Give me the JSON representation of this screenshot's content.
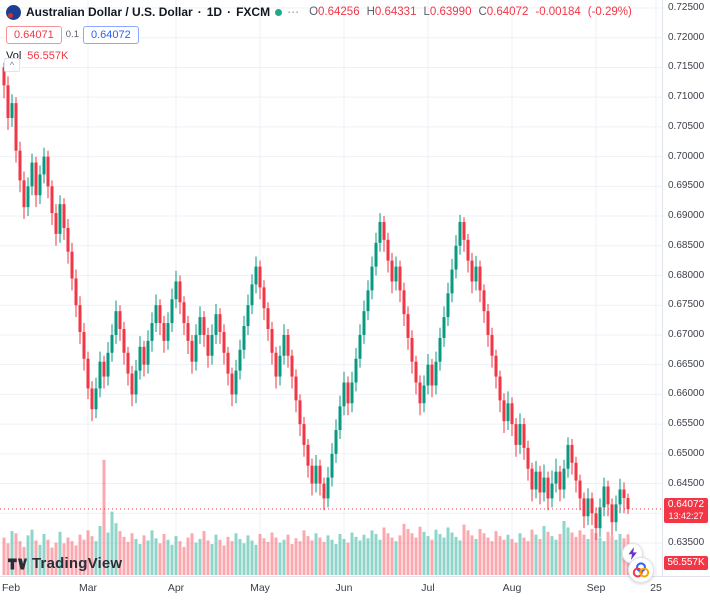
{
  "header": {
    "symbol_title": "Australian Dollar / U.S. Dollar",
    "separator": "·",
    "interval": "1D",
    "exchange": "FXCM",
    "ohlc": {
      "o_label": "O",
      "o": "0.64256",
      "h_label": "H",
      "h": "0.64331",
      "l_label": "L",
      "l": "0.63990",
      "c_label": "C",
      "c": "0.64072",
      "change": "-0.00184",
      "change_pct": "(-0.29%)"
    },
    "sell_price": "0.64071",
    "spread": "0.1",
    "buy_price": "0.64072",
    "vol_label": "Vol",
    "vol_value": "56.557K",
    "more_icon_glyph": "⋯",
    "collapse_glyph": "^"
  },
  "price_axis": {
    "labels": [
      "0.72500",
      "0.72000",
      "0.71500",
      "0.71000",
      "0.70500",
      "0.70000",
      "0.69500",
      "0.69000",
      "0.68500",
      "0.68000",
      "0.67500",
      "0.67000",
      "0.66500",
      "0.66000",
      "0.65500",
      "0.65000",
      "0.64500",
      "0.64000",
      "0.63500"
    ],
    "current_price": "0.64072",
    "countdown": "13:42:27"
  },
  "volume_badge": "56.557K",
  "watermark_text": "TradingView",
  "colors": {
    "up": "#089981",
    "down": "#f23645",
    "volume_up": "#22ab94",
    "volume_down": "#f7525f",
    "buy_blue": "#2962ff",
    "grid": "#eef1f7",
    "badge_red": "#f23645"
  },
  "chart_data": {
    "type": "candlestick",
    "title": "Australian Dollar / U.S. Dollar",
    "interval": "1D",
    "exchange": "FXCM",
    "price_range": [
      0.635,
      0.725
    ],
    "grid_step": 0.005,
    "last_price": 0.64072,
    "volume_unit": "K",
    "x_ticks": [
      [
        "Feb",
        0
      ],
      [
        "Mar",
        21
      ],
      [
        "Apr",
        43
      ],
      [
        "May",
        64
      ],
      [
        "Jun",
        85
      ],
      [
        "Jul",
        106
      ],
      [
        "Aug",
        127
      ],
      [
        "Sep",
        148
      ],
      [
        "25",
        163
      ]
    ],
    "candles": [
      [
        0.715,
        0.7158,
        0.7098,
        0.712
      ],
      [
        0.712,
        0.7135,
        0.7045,
        0.7065
      ],
      [
        0.7065,
        0.7105,
        0.705,
        0.709
      ],
      [
        0.709,
        0.71,
        0.699,
        0.701
      ],
      [
        0.701,
        0.7025,
        0.694,
        0.696
      ],
      [
        0.696,
        0.6975,
        0.6895,
        0.6915
      ],
      [
        0.6915,
        0.6965,
        0.69,
        0.695
      ],
      [
        0.695,
        0.7005,
        0.6935,
        0.699
      ],
      [
        0.699,
        0.7,
        0.6915,
        0.6935
      ],
      [
        0.6935,
        0.6985,
        0.692,
        0.697
      ],
      [
        0.697,
        0.7015,
        0.6955,
        0.7
      ],
      [
        0.7,
        0.701,
        0.693,
        0.695
      ],
      [
        0.695,
        0.696,
        0.6885,
        0.6905
      ],
      [
        0.6905,
        0.692,
        0.685,
        0.687
      ],
      [
        0.687,
        0.6935,
        0.6855,
        0.692
      ],
      [
        0.692,
        0.693,
        0.686,
        0.688
      ],
      [
        0.688,
        0.6895,
        0.682,
        0.684
      ],
      [
        0.684,
        0.6855,
        0.6775,
        0.6795
      ],
      [
        0.6795,
        0.681,
        0.673,
        0.675
      ],
      [
        0.675,
        0.6765,
        0.6685,
        0.6705
      ],
      [
        0.6705,
        0.672,
        0.664,
        0.666
      ],
      [
        0.666,
        0.6672,
        0.6592,
        0.661
      ],
      [
        0.661,
        0.6622,
        0.6555,
        0.6575
      ],
      [
        0.6575,
        0.6628,
        0.656,
        0.661
      ],
      [
        0.661,
        0.6672,
        0.6595,
        0.6655
      ],
      [
        0.6655,
        0.6665,
        0.661,
        0.663
      ],
      [
        0.663,
        0.6688,
        0.6615,
        0.667
      ],
      [
        0.667,
        0.6718,
        0.6655,
        0.67
      ],
      [
        0.67,
        0.6758,
        0.6685,
        0.674
      ],
      [
        0.674,
        0.675,
        0.669,
        0.671
      ],
      [
        0.671,
        0.6722,
        0.665,
        0.667
      ],
      [
        0.667,
        0.668,
        0.6615,
        0.6635
      ],
      [
        0.6635,
        0.6648,
        0.658,
        0.66
      ],
      [
        0.66,
        0.6658,
        0.6585,
        0.664
      ],
      [
        0.664,
        0.6698,
        0.6625,
        0.668
      ],
      [
        0.668,
        0.669,
        0.663,
        0.665
      ],
      [
        0.665,
        0.6708,
        0.6635,
        0.669
      ],
      [
        0.669,
        0.6738,
        0.6672,
        0.672
      ],
      [
        0.672,
        0.6768,
        0.6705,
        0.675
      ],
      [
        0.675,
        0.676,
        0.67,
        0.672
      ],
      [
        0.672,
        0.6732,
        0.667,
        0.669
      ],
      [
        0.669,
        0.6738,
        0.6675,
        0.672
      ],
      [
        0.672,
        0.6778,
        0.6705,
        0.676
      ],
      [
        0.676,
        0.6808,
        0.6745,
        0.679
      ],
      [
        0.679,
        0.68,
        0.6735,
        0.6755
      ],
      [
        0.6755,
        0.6765,
        0.67,
        0.672
      ],
      [
        0.672,
        0.6732,
        0.6668,
        0.669
      ],
      [
        0.669,
        0.67,
        0.6635,
        0.6655
      ],
      [
        0.6655,
        0.6718,
        0.664,
        0.67
      ],
      [
        0.67,
        0.6748,
        0.6685,
        0.673
      ],
      [
        0.673,
        0.674,
        0.668,
        0.67
      ],
      [
        0.67,
        0.6712,
        0.6645,
        0.6665
      ],
      [
        0.6665,
        0.6718,
        0.665,
        0.67
      ],
      [
        0.67,
        0.6752,
        0.6685,
        0.6735
      ],
      [
        0.6735,
        0.6745,
        0.6685,
        0.6705
      ],
      [
        0.6705,
        0.6718,
        0.665,
        0.667
      ],
      [
        0.667,
        0.668,
        0.6615,
        0.6635
      ],
      [
        0.6635,
        0.6645,
        0.658,
        0.66
      ],
      [
        0.66,
        0.6658,
        0.6585,
        0.664
      ],
      [
        0.664,
        0.6692,
        0.6625,
        0.6675
      ],
      [
        0.6675,
        0.6732,
        0.666,
        0.6715
      ],
      [
        0.6715,
        0.6768,
        0.67,
        0.675
      ],
      [
        0.675,
        0.6802,
        0.6735,
        0.6785
      ],
      [
        0.6785,
        0.6832,
        0.677,
        0.6815
      ],
      [
        0.6815,
        0.6825,
        0.676,
        0.678
      ],
      [
        0.678,
        0.6792,
        0.6725,
        0.6745
      ],
      [
        0.6745,
        0.6755,
        0.669,
        0.671
      ],
      [
        0.671,
        0.6722,
        0.665,
        0.667
      ],
      [
        0.667,
        0.668,
        0.661,
        0.663
      ],
      [
        0.663,
        0.6682,
        0.6615,
        0.6665
      ],
      [
        0.6665,
        0.6718,
        0.665,
        0.67
      ],
      [
        0.67,
        0.671,
        0.6645,
        0.6665
      ],
      [
        0.6665,
        0.6675,
        0.661,
        0.663
      ],
      [
        0.663,
        0.6642,
        0.657,
        0.659
      ],
      [
        0.659,
        0.66,
        0.653,
        0.655
      ],
      [
        0.655,
        0.6562,
        0.6495,
        0.6515
      ],
      [
        0.6515,
        0.6525,
        0.646,
        0.648
      ],
      [
        0.648,
        0.6492,
        0.643,
        0.645
      ],
      [
        0.645,
        0.6498,
        0.6435,
        0.648
      ],
      [
        0.648,
        0.649,
        0.643,
        0.645
      ],
      [
        0.645,
        0.646,
        0.6405,
        0.6425
      ],
      [
        0.6425,
        0.6478,
        0.641,
        0.646
      ],
      [
        0.646,
        0.6518,
        0.6445,
        0.65
      ],
      [
        0.65,
        0.6558,
        0.6485,
        0.654
      ],
      [
        0.654,
        0.6598,
        0.6525,
        0.658
      ],
      [
        0.658,
        0.6638,
        0.6565,
        0.662
      ],
      [
        0.662,
        0.663,
        0.6565,
        0.6585
      ],
      [
        0.6585,
        0.6638,
        0.657,
        0.662
      ],
      [
        0.662,
        0.6678,
        0.6605,
        0.666
      ],
      [
        0.666,
        0.6718,
        0.6645,
        0.67
      ],
      [
        0.67,
        0.6758,
        0.6685,
        0.674
      ],
      [
        0.674,
        0.6792,
        0.6725,
        0.6775
      ],
      [
        0.6775,
        0.6832,
        0.676,
        0.6815
      ],
      [
        0.6815,
        0.6872,
        0.68,
        0.6855
      ],
      [
        0.6855,
        0.6905,
        0.684,
        0.689
      ],
      [
        0.689,
        0.69,
        0.684,
        0.686
      ],
      [
        0.686,
        0.6872,
        0.6805,
        0.6825
      ],
      [
        0.6825,
        0.6838,
        0.677,
        0.679
      ],
      [
        0.679,
        0.6832,
        0.6775,
        0.6815
      ],
      [
        0.6815,
        0.6825,
        0.6755,
        0.6775
      ],
      [
        0.6775,
        0.6788,
        0.6715,
        0.6735
      ],
      [
        0.6735,
        0.6748,
        0.6675,
        0.6695
      ],
      [
        0.6695,
        0.6708,
        0.6635,
        0.6655
      ],
      [
        0.6655,
        0.6665,
        0.66,
        0.662
      ],
      [
        0.662,
        0.6632,
        0.6565,
        0.6585
      ],
      [
        0.6585,
        0.6632,
        0.657,
        0.6615
      ],
      [
        0.6615,
        0.6668,
        0.66,
        0.665
      ],
      [
        0.665,
        0.666,
        0.6595,
        0.6615
      ],
      [
        0.6615,
        0.6672,
        0.66,
        0.6655
      ],
      [
        0.6655,
        0.6712,
        0.664,
        0.6695
      ],
      [
        0.6695,
        0.6748,
        0.668,
        0.673
      ],
      [
        0.673,
        0.6788,
        0.6715,
        0.677
      ],
      [
        0.677,
        0.6828,
        0.6755,
        0.681
      ],
      [
        0.681,
        0.6868,
        0.6795,
        0.685
      ],
      [
        0.685,
        0.6902,
        0.6835,
        0.689
      ],
      [
        0.689,
        0.6898,
        0.684,
        0.686
      ],
      [
        0.686,
        0.687,
        0.6805,
        0.6825
      ],
      [
        0.6825,
        0.6838,
        0.677,
        0.679
      ],
      [
        0.679,
        0.6833,
        0.6775,
        0.6815
      ],
      [
        0.6815,
        0.6825,
        0.6755,
        0.6775
      ],
      [
        0.6775,
        0.6785,
        0.672,
        0.674
      ],
      [
        0.674,
        0.6752,
        0.668,
        0.67
      ],
      [
        0.67,
        0.6712,
        0.6645,
        0.6665
      ],
      [
        0.6665,
        0.6675,
        0.661,
        0.663
      ],
      [
        0.663,
        0.664,
        0.657,
        0.659
      ],
      [
        0.659,
        0.6602,
        0.6535,
        0.6555
      ],
      [
        0.6555,
        0.6605,
        0.654,
        0.6585
      ],
      [
        0.6585,
        0.6595,
        0.653,
        0.655
      ],
      [
        0.655,
        0.656,
        0.6495,
        0.6515
      ],
      [
        0.6515,
        0.6568,
        0.65,
        0.655
      ],
      [
        0.655,
        0.656,
        0.649,
        0.651
      ],
      [
        0.651,
        0.6522,
        0.6455,
        0.6475
      ],
      [
        0.6475,
        0.6485,
        0.642,
        0.644
      ],
      [
        0.644,
        0.6488,
        0.6425,
        0.647
      ],
      [
        0.647,
        0.648,
        0.6415,
        0.6435
      ],
      [
        0.6435,
        0.6482,
        0.642,
        0.646
      ],
      [
        0.646,
        0.647,
        0.6405,
        0.6425
      ],
      [
        0.6425,
        0.6472,
        0.641,
        0.645
      ],
      [
        0.645,
        0.6492,
        0.6435,
        0.647
      ],
      [
        0.647,
        0.648,
        0.642,
        0.644
      ],
      [
        0.644,
        0.649,
        0.6425,
        0.6475
      ],
      [
        0.6475,
        0.6528,
        0.646,
        0.6515
      ],
      [
        0.6515,
        0.6525,
        0.6465,
        0.6485
      ],
      [
        0.6485,
        0.6495,
        0.6435,
        0.6455
      ],
      [
        0.6455,
        0.6465,
        0.6405,
        0.6425
      ],
      [
        0.6425,
        0.6435,
        0.6375,
        0.6395
      ],
      [
        0.6395,
        0.6442,
        0.638,
        0.6425
      ],
      [
        0.6425,
        0.6435,
        0.638,
        0.64
      ],
      [
        0.64,
        0.641,
        0.6355,
        0.6375
      ],
      [
        0.6375,
        0.6425,
        0.636,
        0.641
      ],
      [
        0.641,
        0.646,
        0.6395,
        0.6445
      ],
      [
        0.6445,
        0.6455,
        0.6395,
        0.6415
      ],
      [
        0.6415,
        0.6425,
        0.6362,
        0.6385
      ],
      [
        0.6385,
        0.643,
        0.637,
        0.6415
      ],
      [
        0.6415,
        0.6458,
        0.64,
        0.644
      ],
      [
        0.644,
        0.6452,
        0.64,
        0.64256
      ],
      [
        0.64256,
        0.64331,
        0.6399,
        0.64072
      ]
    ],
    "volumes": [
      52,
      44,
      61,
      58,
      47,
      39,
      55,
      63,
      48,
      42,
      57,
      49,
      38,
      45,
      60,
      44,
      52,
      47,
      41,
      56,
      49,
      62,
      54,
      47,
      68,
      160,
      59,
      88,
      72,
      61,
      53,
      46,
      58,
      50,
      43,
      55,
      48,
      62,
      51,
      44,
      57,
      49,
      42,
      54,
      47,
      39,
      52,
      58,
      45,
      50,
      61,
      48,
      43,
      56,
      49,
      41,
      53,
      47,
      58,
      50,
      44,
      55,
      48,
      42,
      57,
      51,
      46,
      59,
      52,
      45,
      49,
      56,
      43,
      51,
      47,
      62,
      54,
      48,
      58,
      52,
      46,
      55,
      49,
      43,
      57,
      50,
      45,
      59,
      53,
      48,
      56,
      51,
      62,
      57,
      49,
      66,
      58,
      52,
      47,
      55,
      71,
      64,
      58,
      52,
      67,
      60,
      54,
      49,
      63,
      57,
      52,
      66,
      59,
      53,
      48,
      70,
      62,
      55,
      50,
      64,
      58,
      52,
      47,
      61,
      54,
      49,
      56,
      50,
      45,
      58,
      52,
      47,
      63,
      56,
      50,
      68,
      60,
      54,
      49,
      57,
      75,
      66,
      59,
      53,
      62,
      56,
      50,
      64,
      58,
      52,
      47,
      60,
      54,
      49,
      57,
      51,
      56.557
    ]
  }
}
